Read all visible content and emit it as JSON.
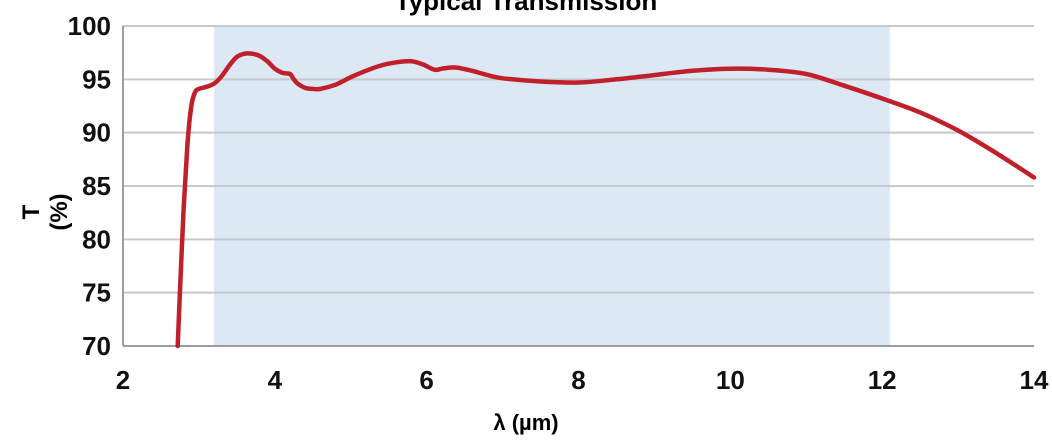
{
  "chart_data": {
    "type": "line",
    "title": "Typical Transmission",
    "xlabel": "λ (µm)",
    "ylabel": "T (%)",
    "xlim": [
      2,
      14
    ],
    "ylim": [
      70,
      100
    ],
    "x_ticks": [
      2,
      4,
      6,
      8,
      10,
      12,
      14
    ],
    "y_ticks": [
      70,
      75,
      80,
      85,
      90,
      95,
      100
    ],
    "grid": "horizontal",
    "highlight_band": {
      "x_range": [
        3.2,
        12.1
      ],
      "color": "#dce8f4"
    },
    "line_color": "#c0202a",
    "series": [
      {
        "x": [
          2.72,
          2.75,
          2.8,
          2.85,
          2.9,
          2.95,
          3.0,
          3.1,
          3.2,
          3.3,
          3.4,
          3.5,
          3.6,
          3.7,
          3.8,
          3.9,
          4.0,
          4.1,
          4.2,
          4.25,
          4.3,
          4.4,
          4.5,
          4.6,
          4.8,
          5.0,
          5.2,
          5.4,
          5.6,
          5.8,
          5.95,
          6.1,
          6.2,
          6.3,
          6.4,
          6.6,
          6.8,
          7.0,
          7.5,
          8.0,
          8.5,
          9.0,
          9.5,
          10.0,
          10.5,
          11.0,
          11.5,
          12.0,
          12.5,
          13.0,
          13.5,
          14.0
        ],
        "y": [
          70.0,
          75.0,
          83.0,
          89.0,
          92.5,
          93.8,
          94.1,
          94.3,
          94.6,
          95.3,
          96.3,
          97.1,
          97.4,
          97.4,
          97.2,
          96.7,
          96.0,
          95.6,
          95.5,
          95.0,
          94.6,
          94.2,
          94.1,
          94.1,
          94.5,
          95.2,
          95.8,
          96.3,
          96.6,
          96.7,
          96.4,
          95.9,
          96.0,
          96.1,
          96.1,
          95.8,
          95.4,
          95.1,
          94.8,
          94.7,
          95.0,
          95.4,
          95.8,
          96.0,
          95.9,
          95.5,
          94.4,
          93.2,
          91.9,
          90.2,
          88.1,
          85.8
        ]
      }
    ]
  }
}
